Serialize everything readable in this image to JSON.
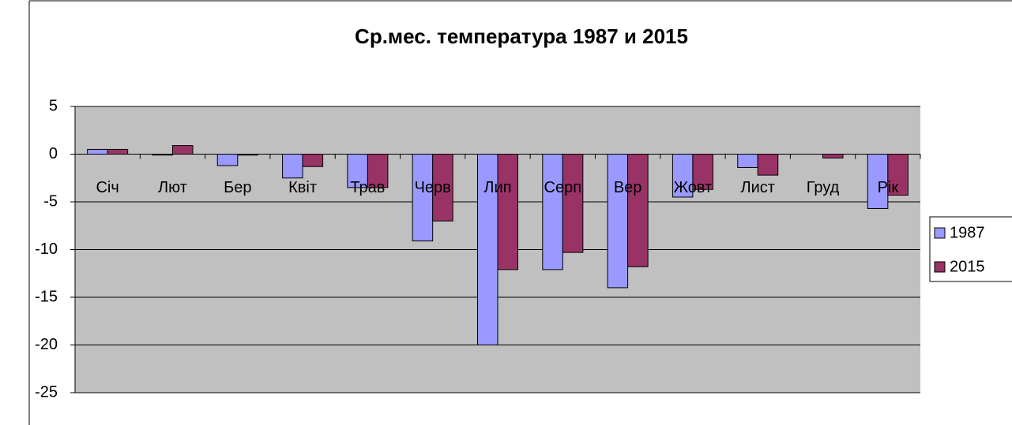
{
  "chart_data": {
    "type": "bar",
    "title": "Ср.мес. температура 1987 и 2015",
    "categories": [
      "Січ",
      "Лют",
      "Бер",
      "Квіт",
      "Трав",
      "Черв",
      "Лип",
      "Серп",
      "Вер",
      "Жовт",
      "Лист",
      "Груд",
      "Рік"
    ],
    "series": [
      {
        "name": "1987",
        "color": "#9999ff",
        "values": [
          0.5,
          -0.1,
          -1.2,
          -2.5,
          -3.5,
          -9.1,
          -20.0,
          -12.1,
          -14.0,
          -4.5,
          -1.4,
          0,
          -5.7
        ]
      },
      {
        "name": "2015",
        "color": "#993366",
        "values": [
          0.5,
          0.9,
          -0.1,
          -1.3,
          -3.5,
          -7.0,
          -12.1,
          -10.3,
          -11.8,
          -3.7,
          -2.2,
          -0.4,
          -4.3
        ]
      }
    ],
    "ylim": [
      -25,
      5
    ],
    "yticks": [
      5,
      0,
      -5,
      -10,
      -15,
      -20,
      -25
    ],
    "grid": true,
    "legend": "right"
  }
}
